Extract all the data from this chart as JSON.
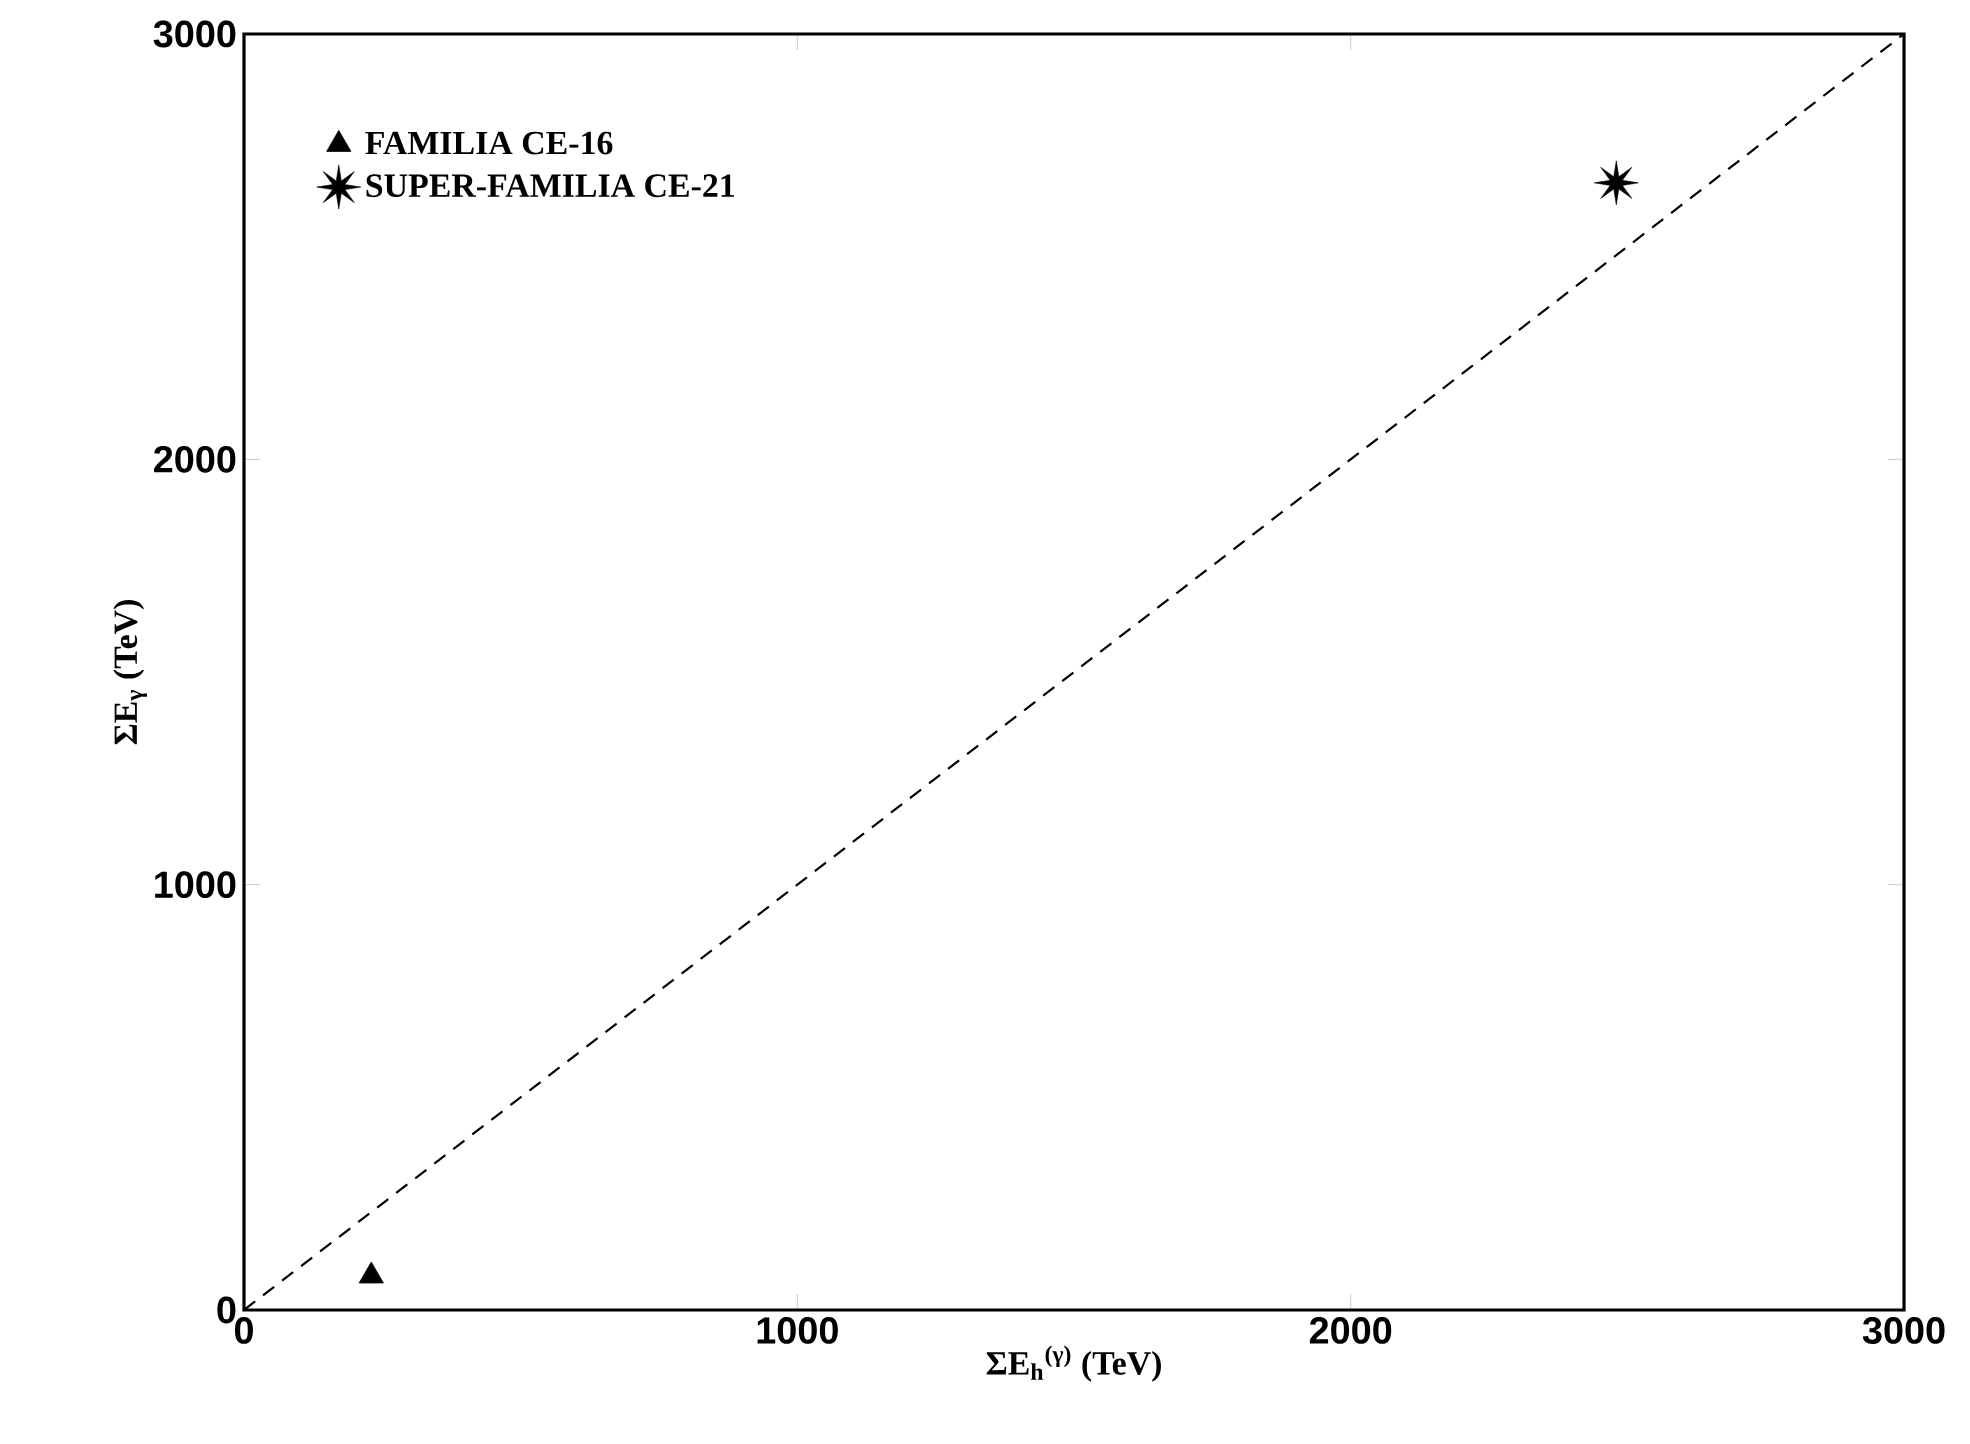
{
  "chart_data": {
    "type": "scatter",
    "xlabel": "ΣE$_{h}$$^{(γ)}$ (TeV)",
    "ylabel": "ΣE$_{γ}$ (TeV)",
    "xlim": [
      0,
      3000
    ],
    "ylim": [
      0,
      3000
    ],
    "xticks": [
      0,
      1000,
      2000,
      3000
    ],
    "yticks": [
      0,
      1000,
      2000,
      3000
    ],
    "grid": false,
    "legend": "top left",
    "series": [
      {
        "name": "FAMILIA CE-16",
        "color": "#000000",
        "marker": "triangle",
        "x": [
          230
        ],
        "values": [
          80
        ]
      },
      {
        "name": "SUPER-FAMILIA CE-21",
        "color": "#000000",
        "marker": "star",
        "x": [
          2480
        ],
        "values": [
          2650
        ]
      },
      {
        "type": "line",
        "color": "#000000",
        "line_style": "dashed",
        "marker": "none",
        "x": [
          0,
          3000
        ],
        "values": [
          0,
          3000
        ]
      }
    ]
  }
}
